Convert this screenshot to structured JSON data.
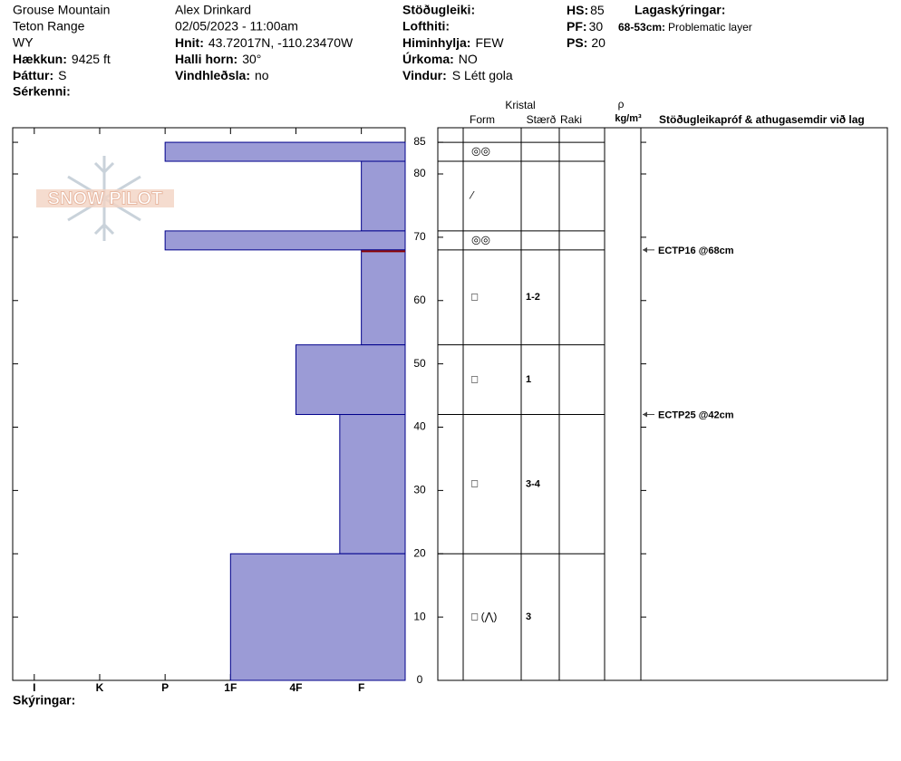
{
  "header": {
    "location": "Grouse Mountain",
    "range": "Teton Range",
    "state": "WY",
    "elevation_label": "Hækkun:",
    "elevation": "9425 ft",
    "aspect_label": "Þáttur:",
    "aspect": "S",
    "features_label": "Sérkenni:",
    "observer": "Alex Drinkard",
    "datetime": "02/05/2023 - 11:00am",
    "coords_label": "Hnit:",
    "coords": "43.72017N, -110.23470W",
    "slope_label": "Halli horn:",
    "slope": "30°",
    "wind_loading_label": "Vindhleðsla:",
    "wind_loading": "no",
    "stability_label": "Stöðugleiki:",
    "air_temp_label": "Lofthiti:",
    "sky_label": "Himinhylja:",
    "sky": "FEW",
    "precip_label": "Úrkoma:",
    "precip": "NO",
    "wind_label": "Vindur:",
    "wind": "S Létt gola",
    "hs_label": "HS:",
    "hs": 85,
    "pf_label": "PF:",
    "pf": 30,
    "ps_label": "PS:",
    "ps": 20,
    "notes_label": "Lagaskýringar:",
    "notes": [
      {
        "range": "68-53cm:",
        "text": "Problematic layer"
      }
    ]
  },
  "chart_data": {
    "type": "bar",
    "watermark": "SNOW PILOT",
    "color": "#9b9bd6",
    "edge_color": "#00008b",
    "highlight_color": "#8b0000",
    "xlim": [
      6.33,
      0.33
    ],
    "xticks": [
      {
        "value": 6,
        "label": "I"
      },
      {
        "value": 5,
        "label": "K"
      },
      {
        "value": 4,
        "label": "P"
      },
      {
        "value": 3,
        "label": "1F"
      },
      {
        "value": 2,
        "label": "4F"
      },
      {
        "value": 1,
        "label": "F"
      }
    ],
    "ylim": [
      0,
      87.3
    ],
    "yticks": [
      0,
      10,
      20,
      30,
      40,
      50,
      60,
      70,
      80,
      85
    ],
    "table_headers": {
      "crystal": "Kristal",
      "form": "Form",
      "size": "Stærð",
      "moisture": "Raki",
      "rho": "ρ",
      "density_unit": "kg/m³",
      "comments": "Stöðugleikapróf & athugasemdir við lag"
    },
    "layers": [
      {
        "top": 85,
        "bottom": 82,
        "hardness": 4,
        "form": "◎◎"
      },
      {
        "top": 82,
        "bottom": 71,
        "hardness": 1,
        "form": "⁄"
      },
      {
        "top": 71,
        "bottom": 68,
        "hardness": 4,
        "form": "◎◎"
      },
      {
        "top": 68,
        "bottom": 53,
        "hardness": 1,
        "form": "□",
        "size": "1-2"
      },
      {
        "top": 53,
        "bottom": 42,
        "hardness": 2,
        "form": "□",
        "size": "1"
      },
      {
        "top": 42,
        "bottom": 20,
        "hardness": 1.33,
        "form": "□",
        "size": "3-4"
      },
      {
        "top": 20,
        "bottom": 0,
        "hardness": 3,
        "form": "□ (⋀)",
        "size": "3"
      }
    ],
    "tests": [
      {
        "label": "ECTP16 @68cm",
        "depth": 68
      },
      {
        "label": "ECTP25 @42cm",
        "depth": 42
      }
    ]
  },
  "footer": {
    "legend_label": "Skýringar:"
  }
}
